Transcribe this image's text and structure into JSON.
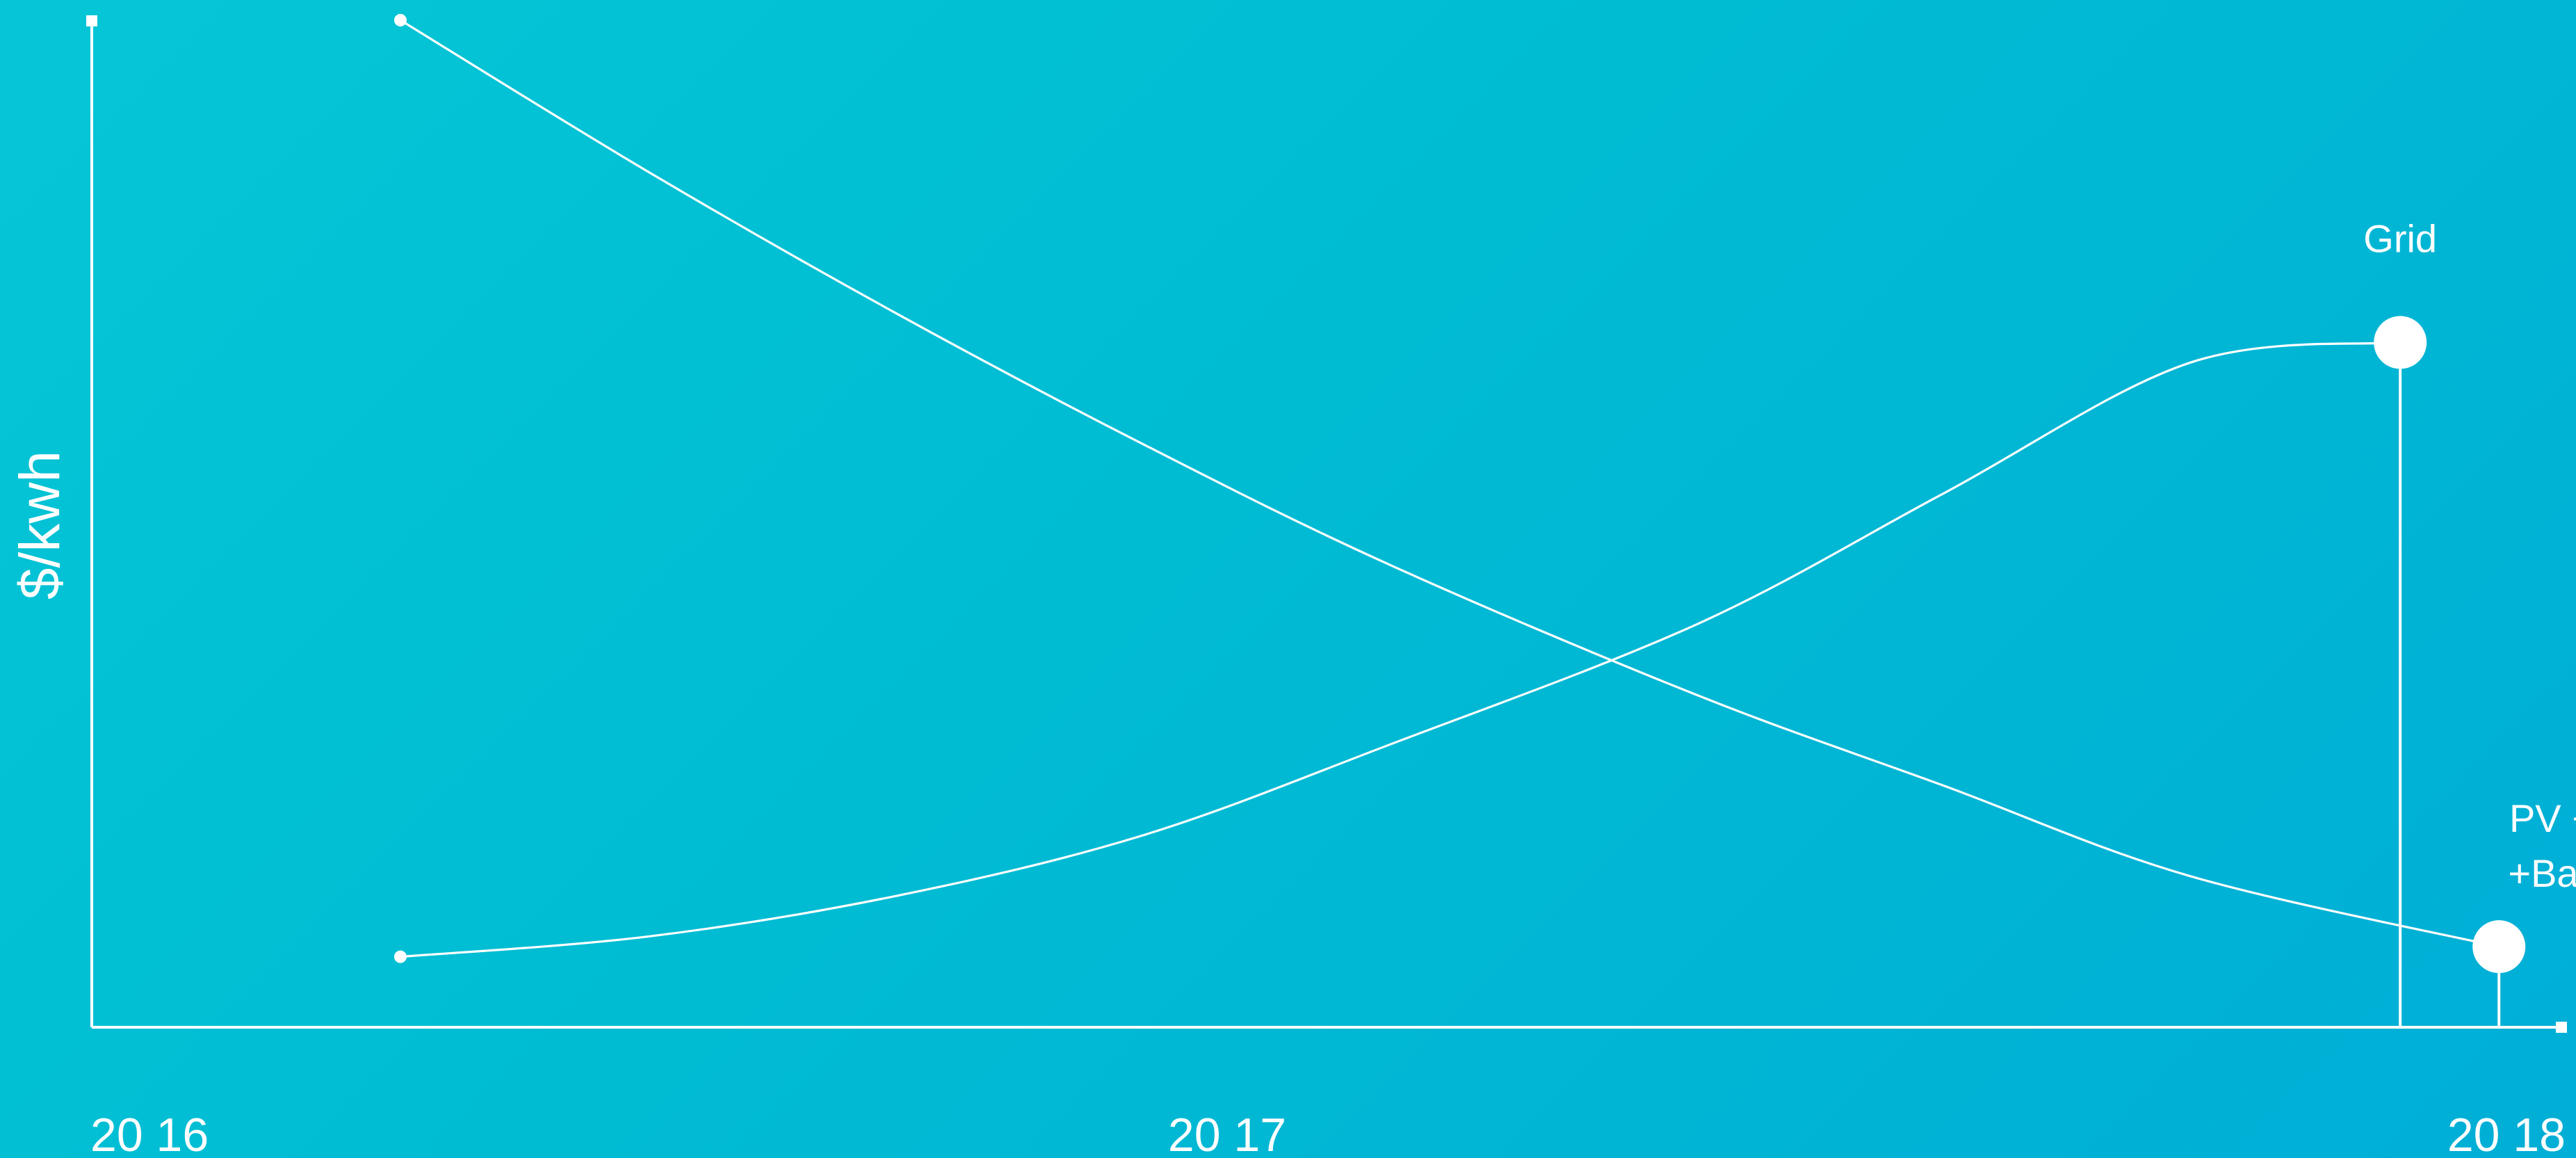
{
  "chart_data": {
    "type": "line",
    "title": "",
    "xlabel": "",
    "ylabel": "$/kwh",
    "x_ticks": [
      "20 16",
      "20 17",
      "20 18"
    ],
    "grid": false,
    "legend": "inline labels at series ends",
    "series": [
      {
        "name": "Grid",
        "label_lines": [
          "Grid"
        ],
        "x": [
          2016.25,
          2016.45,
          2016.65,
          2016.85,
          2017.05,
          2017.3,
          2017.5,
          2017.7,
          2017.87
        ],
        "y": [
          0.07,
          0.09,
          0.13,
          0.19,
          0.28,
          0.4,
          0.53,
          0.66,
          0.68
        ]
      },
      {
        "name": "PV +Wind +Batteries",
        "label_lines": [
          "PV +Wind",
          "+Batteries"
        ],
        "x": [
          2016.25,
          2016.45,
          2016.65,
          2016.85,
          2017.05,
          2017.3,
          2017.5,
          2017.7,
          2017.95
        ],
        "y": [
          1.0,
          0.85,
          0.71,
          0.58,
          0.46,
          0.33,
          0.24,
          0.15,
          0.08
        ]
      }
    ],
    "ylim": [
      0,
      1
    ],
    "xlim": [
      2016,
      2018
    ],
    "colors": {
      "lines": "#ffffff",
      "background_start": "#06c6d6",
      "background_end": "#00aed6"
    }
  }
}
